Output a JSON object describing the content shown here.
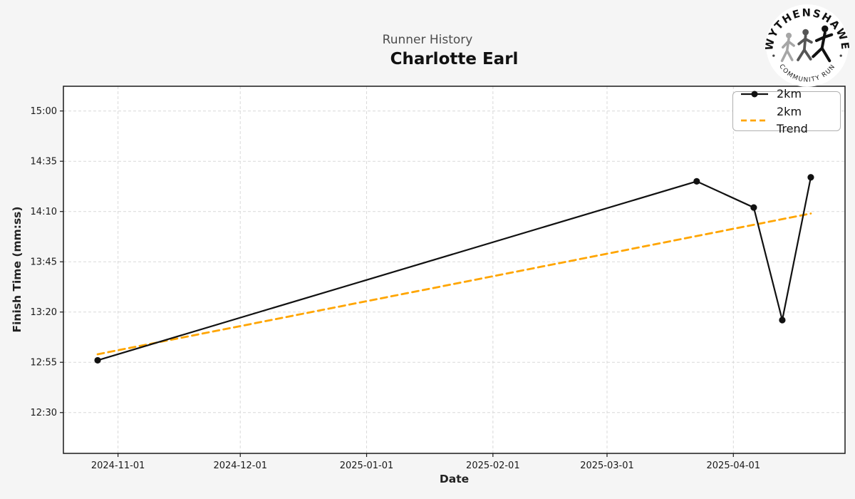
{
  "header": {
    "suptitle": "Runner History",
    "title": "Charlotte Earl"
  },
  "logo": {
    "top_text": "WYTHENSHAWE",
    "bottom_text": "COMMUNITY RUN"
  },
  "axes": {
    "x_label": "Date",
    "y_label": "Finish Time (mm:ss)"
  },
  "legend": [
    {
      "label": "2km",
      "color": "#111111",
      "style": "solid-marker"
    },
    {
      "label": "2km Trend",
      "color": "#FFA500",
      "style": "dashed"
    }
  ],
  "chart_data": {
    "type": "line",
    "title": "Charlotte Earl",
    "subtitle": "Runner History",
    "xlabel": "Date",
    "ylabel": "Finish Time (mm:ss)",
    "grid": true,
    "legend_position": "upper right",
    "x_ticks": [
      {
        "label": "2024-11-01",
        "day": 5
      },
      {
        "label": "2024-12-01",
        "day": 35
      },
      {
        "label": "2025-01-01",
        "day": 66
      },
      {
        "label": "2025-02-01",
        "day": 97
      },
      {
        "label": "2025-03-01",
        "day": 125
      },
      {
        "label": "2025-04-01",
        "day": 156
      }
    ],
    "y_ticks": [
      {
        "label": "12:30",
        "seconds": 750
      },
      {
        "label": "12:55",
        "seconds": 775
      },
      {
        "label": "13:20",
        "seconds": 800
      },
      {
        "label": "13:45",
        "seconds": 825
      },
      {
        "label": "14:10",
        "seconds": 850
      },
      {
        "label": "14:35",
        "seconds": 875
      },
      {
        "label": "15:00",
        "seconds": 900
      }
    ],
    "series": [
      {
        "name": "2km",
        "color": "#111111",
        "style": "solid",
        "marker": "circle",
        "points": [
          {
            "date": "2024-10-27",
            "day": 0,
            "time": "12:56",
            "seconds": 776
          },
          {
            "date": "2025-03-23",
            "day": 147,
            "time": "14:25",
            "seconds": 865
          },
          {
            "date": "2025-04-06",
            "day": 161,
            "time": "14:12",
            "seconds": 852
          },
          {
            "date": "2025-04-13",
            "day": 168,
            "time": "13:16",
            "seconds": 796
          },
          {
            "date": "2025-04-20",
            "day": 175,
            "time": "14:27",
            "seconds": 867
          }
        ]
      },
      {
        "name": "2km Trend",
        "color": "#FFA500",
        "style": "dashed",
        "marker": "none",
        "points": [
          {
            "date": "2024-10-27",
            "day": 0,
            "time": "12:59",
            "seconds": 779
          },
          {
            "date": "2025-04-20",
            "day": 175,
            "time": "14:09",
            "seconds": 849
          }
        ]
      }
    ],
    "xlim_days": [
      -8.4,
      183.4
    ],
    "ylim_seconds": [
      729.7,
      912.3
    ],
    "colors": {
      "figure_bg": "#f5f5f5",
      "plot_bg": "#ffffff",
      "grid": "#d9d9d9",
      "spine": "#1a1a1a",
      "tick_text": "#1a1a1a"
    }
  }
}
